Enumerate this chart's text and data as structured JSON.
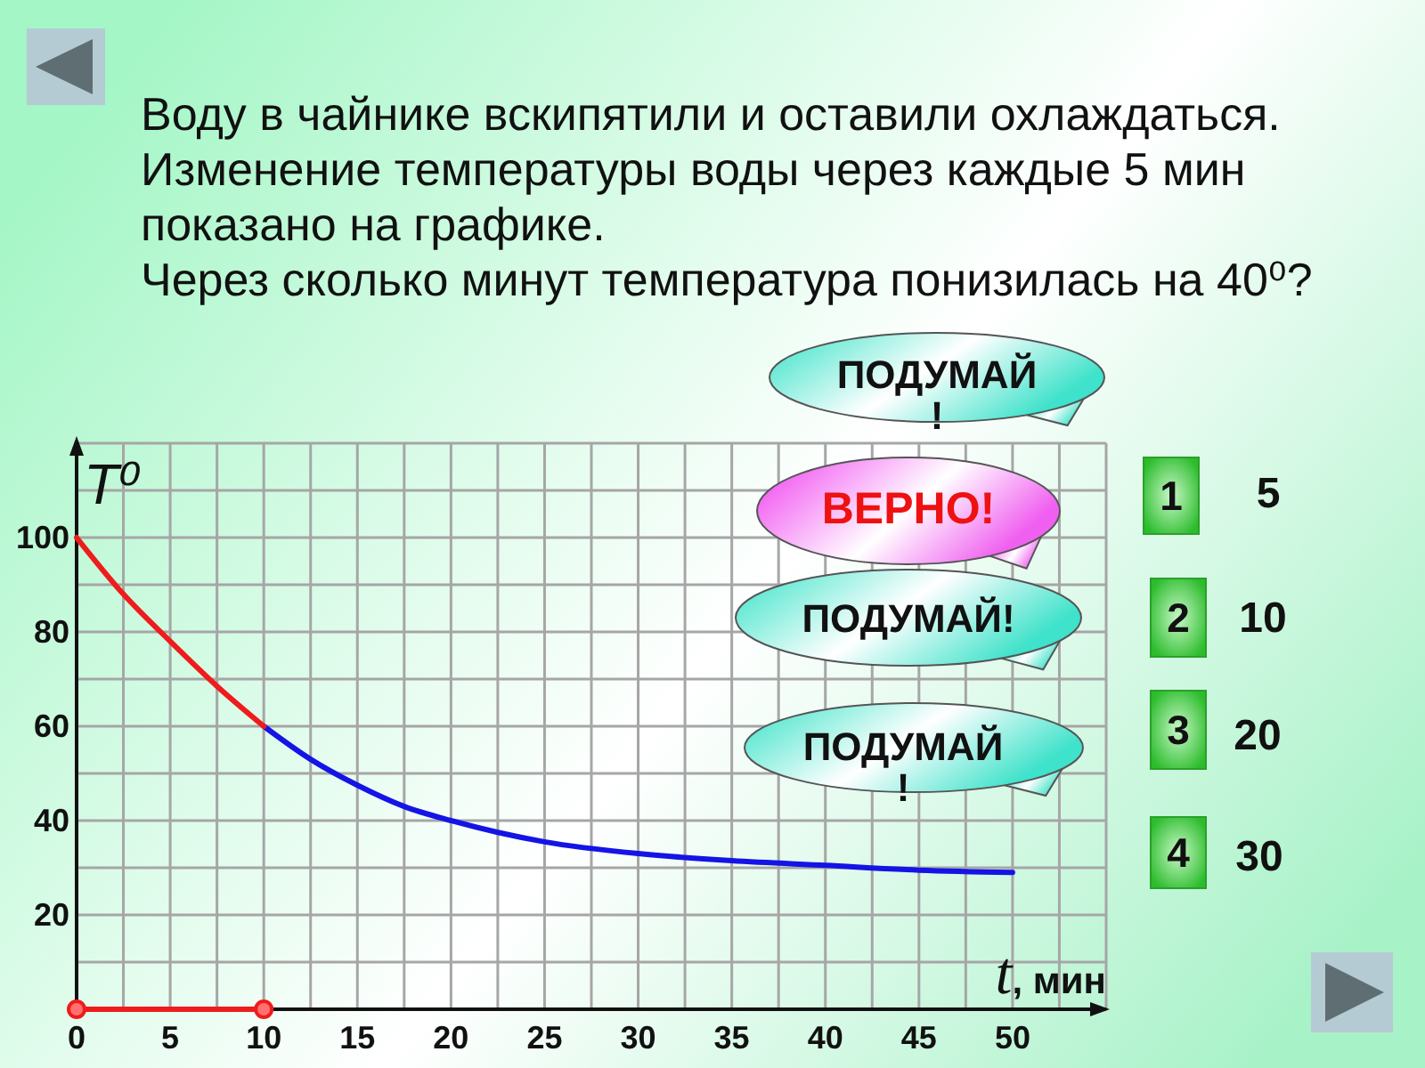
{
  "chart_data": {
    "type": "line",
    "title": "Воду в чайнике вскипятили и оставили охлаждаться. Изменение температуры воды через каждые 5 мин показано на графике.",
    "subtitle": "Через сколько минут температура понизилась на 40⁰?",
    "xlabel": "t, мин",
    "ylabel": "T⁰",
    "xlim": [
      0,
      55
    ],
    "ylim": [
      0,
      120
    ],
    "xticks": [
      0,
      {
        "value": 2.5,
        "label": null
      },
      5,
      {
        "value": 7.5,
        "label": null
      },
      10,
      {
        "value": 12.5,
        "label": null
      },
      15,
      {
        "value": 17.5,
        "label": null
      },
      20,
      {
        "value": 22.5,
        "label": null
      },
      25,
      {
        "value": 27.5,
        "label": null
      },
      30,
      {
        "value": 32.5,
        "label": null
      },
      35,
      {
        "value": 37.5,
        "label": null
      },
      40,
      {
        "value": 42.5,
        "label": null
      },
      45,
      {
        "value": 47.5,
        "label": null
      },
      50,
      {
        "value": 52.5,
        "label": null
      },
      {
        "value": 55,
        "label": null
      }
    ],
    "yticks": [
      {
        "value": 10,
        "label": null
      },
      20,
      {
        "value": 30,
        "label": null
      },
      40,
      {
        "value": 50,
        "label": null
      },
      60,
      {
        "value": 70,
        "label": null
      },
      80,
      {
        "value": 90,
        "label": null
      },
      100,
      {
        "value": 110,
        "label": null
      },
      {
        "value": 120,
        "label": null
      }
    ],
    "grid": true,
    "series": [
      {
        "color": "#1414e6",
        "x": [
          10,
          12.5,
          15,
          17.5,
          20,
          22.5,
          25,
          30,
          35,
          40,
          45,
          50
        ],
        "values": [
          60,
          53,
          47.5,
          43,
          40,
          37.5,
          35.5,
          33,
          31.5,
          30.5,
          29.5,
          29
        ]
      },
      {
        "color": "#ee1c1c",
        "x": [
          0,
          2.5,
          5,
          7.5,
          10
        ],
        "values": [
          100,
          88,
          78,
          68.5,
          60
        ]
      },
      {
        "color": "#ee1c1c",
        "x": [
          0,
          10
        ],
        "values": [
          0,
          0
        ],
        "marker": "circle"
      }
    ],
    "annotations": [
      "ПОДУМАЙ!",
      "ВЕРНО!",
      "ПОДУМАЙ!",
      "ПОДУМАЙ!",
      "1",
      "5",
      "2",
      "10",
      "3",
      "20",
      "4",
      "30"
    ]
  }
}
